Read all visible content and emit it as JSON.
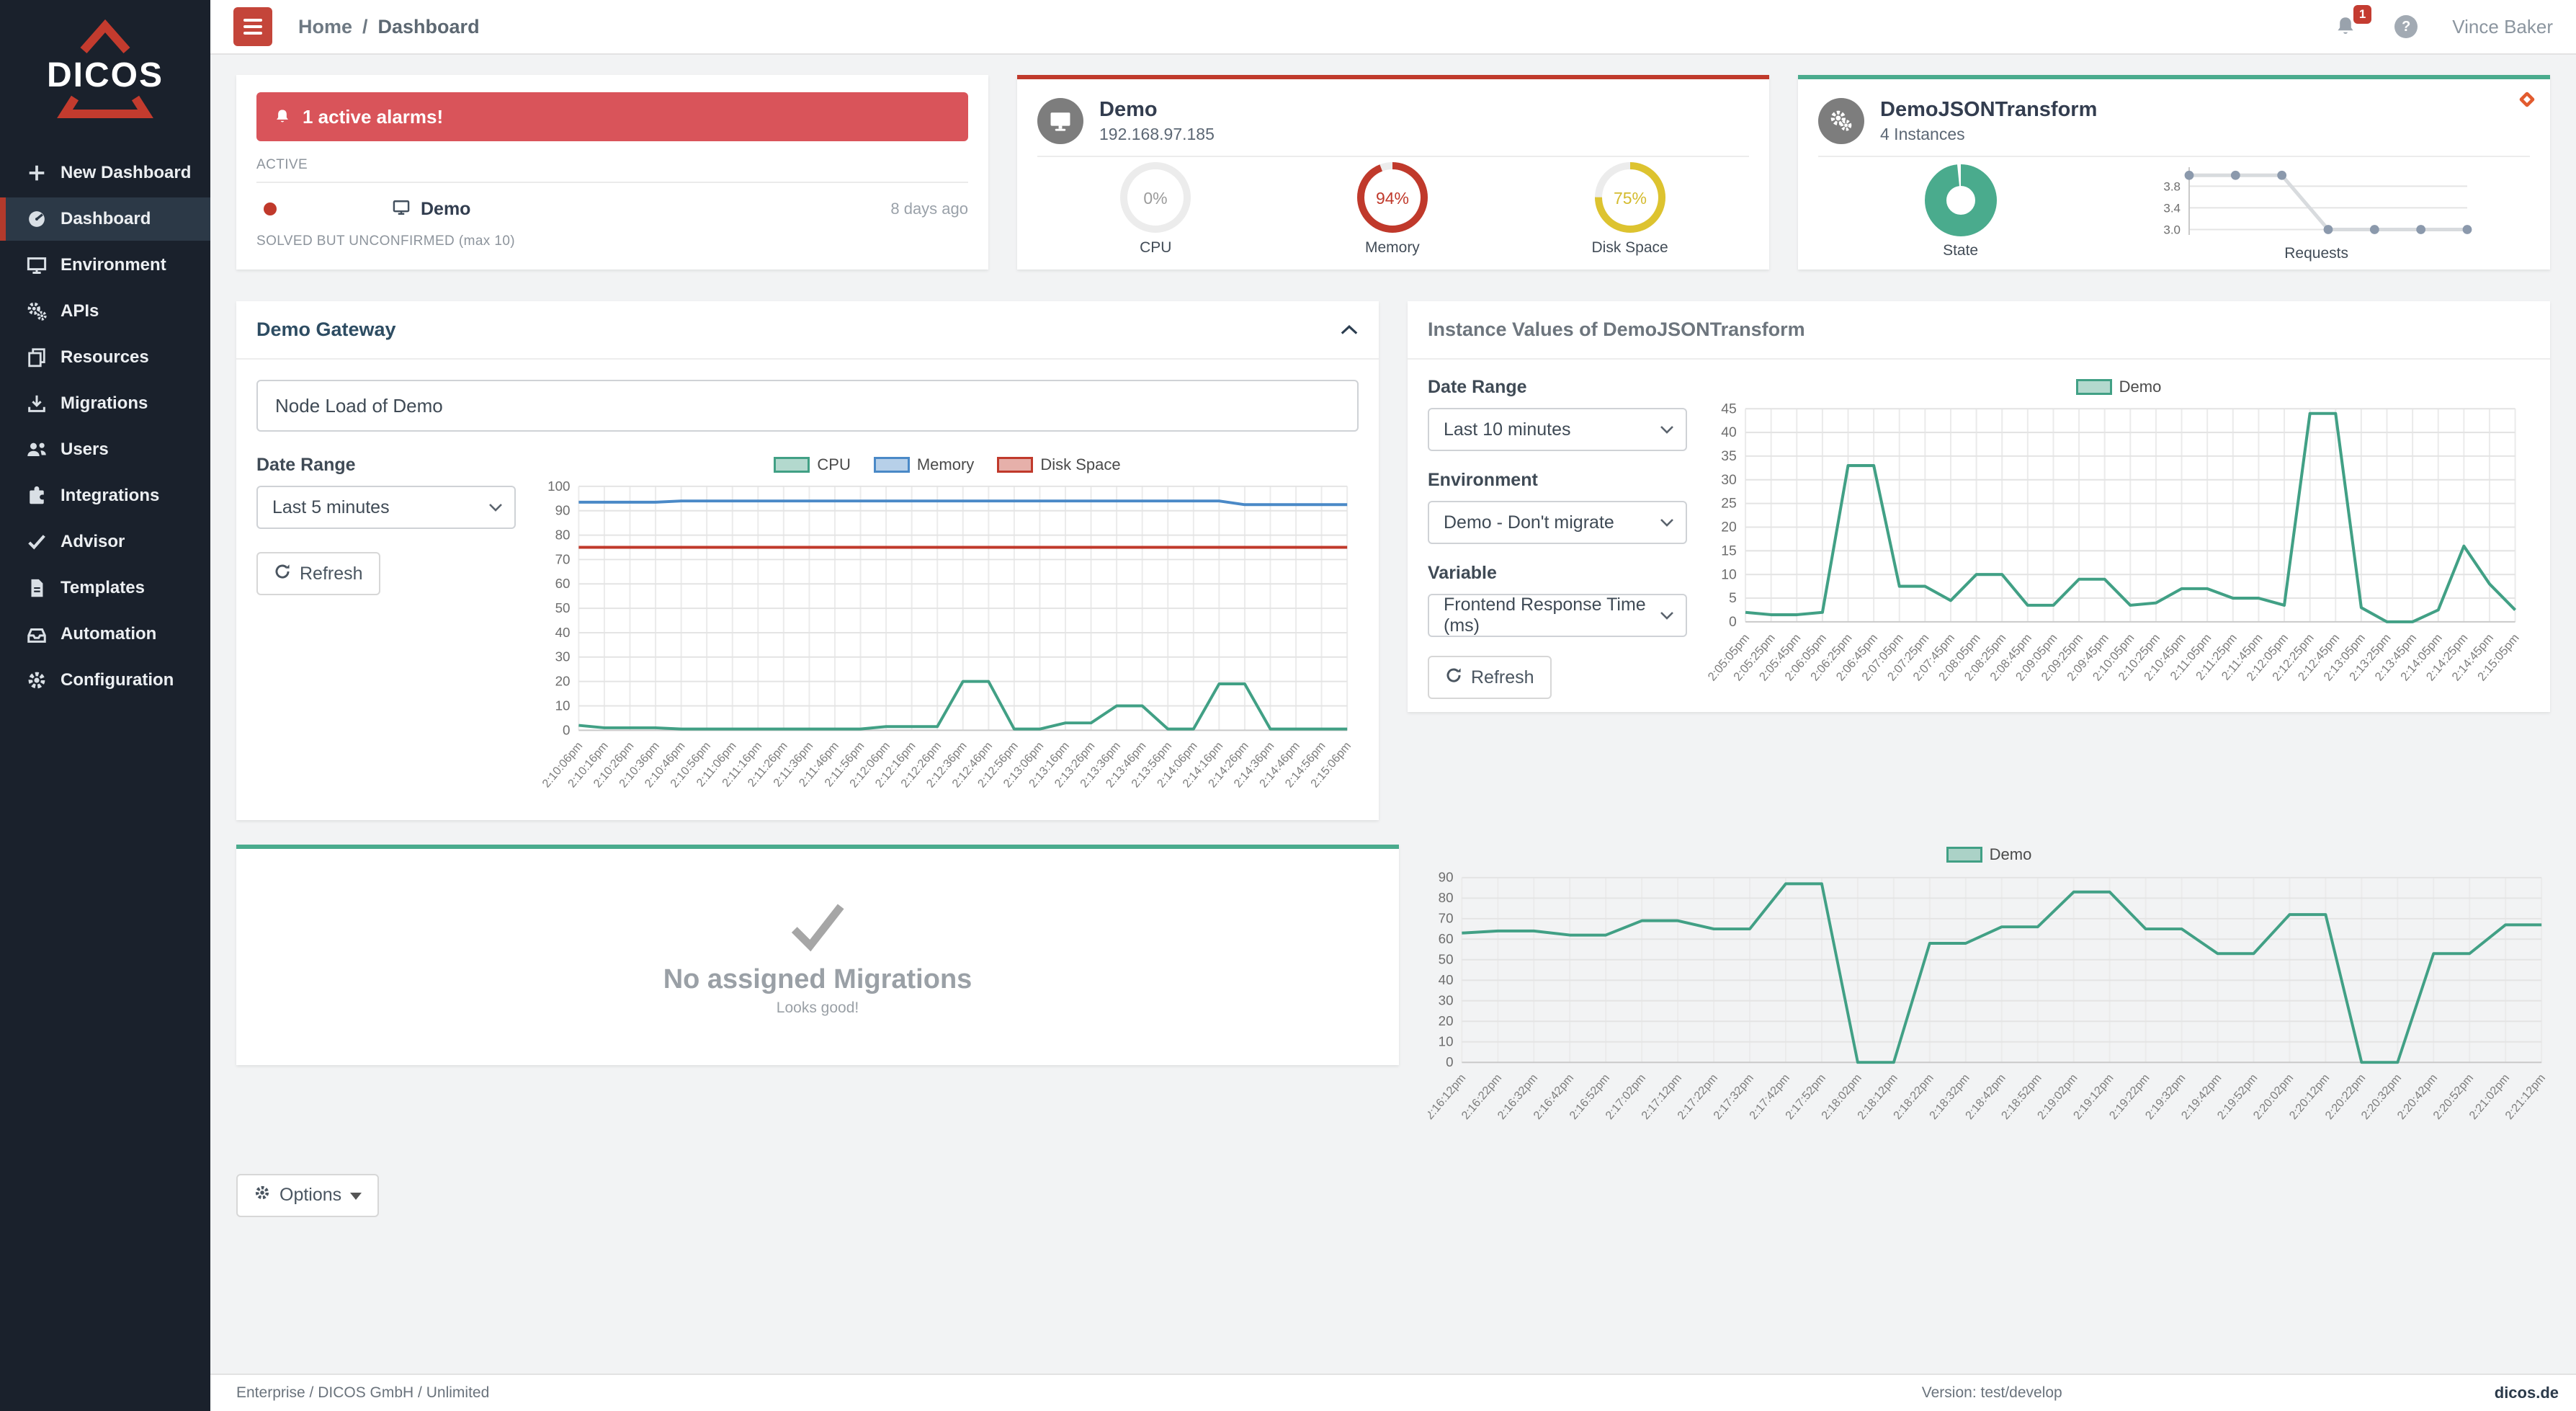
{
  "topbar": {
    "breadcrumb_home": "Home",
    "breadcrumb_sep": "/",
    "breadcrumb_current": "Dashboard",
    "notification_count": "1",
    "help_glyph": "?",
    "user_name": "Vince Baker"
  },
  "sidebar": {
    "logo_text": "DICOS",
    "items": [
      {
        "label": "New Dashboard",
        "icon": "plus-icon",
        "active": false
      },
      {
        "label": "Dashboard",
        "icon": "tachometer-icon",
        "active": true
      },
      {
        "label": "Environment",
        "icon": "desktop-icon",
        "active": false
      },
      {
        "label": "APIs",
        "icon": "gears-icon",
        "active": false
      },
      {
        "label": "Resources",
        "icon": "copy-icon",
        "active": false
      },
      {
        "label": "Migrations",
        "icon": "download-icon",
        "active": false
      },
      {
        "label": "Users",
        "icon": "users-icon",
        "active": false
      },
      {
        "label": "Integrations",
        "icon": "puzzle-icon",
        "active": false
      },
      {
        "label": "Advisor",
        "icon": "check-icon",
        "active": false
      },
      {
        "label": "Templates",
        "icon": "file-icon",
        "active": false
      },
      {
        "label": "Automation",
        "icon": "box-icon",
        "active": false
      },
      {
        "label": "Configuration",
        "icon": "gear-icon",
        "active": false
      }
    ]
  },
  "alarm_card": {
    "banner_text": "1 active alarms!",
    "active_header": "ACTIVE",
    "alarm_name": "Demo",
    "alarm_age": "8 days ago",
    "solved_header": "SOLVED BUT UNCONFIRMED (max 10)"
  },
  "demo_card": {
    "title": "Demo",
    "subtitle": "192.168.97.185",
    "gauges": [
      {
        "label": "CPU",
        "value": 0,
        "display": "0%",
        "color": "#b5b5b5",
        "text_color": "#9b9b9b"
      },
      {
        "label": "Memory",
        "value": 94,
        "display": "94%",
        "color": "#c0392b",
        "text_color": "#c0392b"
      },
      {
        "label": "Disk Space",
        "value": 75,
        "display": "75%",
        "color": "#ddc32f",
        "text_color": "#d4bb2e"
      }
    ]
  },
  "transform_card": {
    "title": "DemoJSONTransform",
    "subtitle": "4 Instances",
    "state_label": "State",
    "requests_label": "Requests",
    "state_color": "#4aab8d"
  },
  "gateway_panel": {
    "title": "Demo Gateway",
    "node_title_value": "Node Load of Demo",
    "date_range_label": "Date Range",
    "date_range_value": "Last 5 minutes",
    "refresh_label": "Refresh"
  },
  "instance_panel": {
    "title": "Instance Values of DemoJSONTransform",
    "date_range_label": "Date Range",
    "date_range_value": "Last 10 minutes",
    "environment_label": "Environment",
    "environment_value": "Demo - Don't migrate",
    "variable_label": "Variable",
    "variable_value": "Frontend Response Time (ms)",
    "refresh_label": "Refresh"
  },
  "migrations_panel": {
    "title": "No assigned Migrations",
    "subtitle": "Looks good!"
  },
  "options_button_label": "Options",
  "footer": {
    "license": "Enterprise / DICOS GmbH / Unlimited",
    "version": "Version: test/develop",
    "site": "dicos.de"
  },
  "colors": {
    "accent_red": "#c0392b",
    "banner_red": "#d9545a",
    "accent_green": "#4aab8d",
    "chart_green": "#41a085",
    "chart_blue": "#4a89c7",
    "chart_red": "#c0392b",
    "sidebar_bg": "#1a212c"
  },
  "chart_data": [
    {
      "id": "requests",
      "type": "line",
      "title": "Requests",
      "x": [
        1,
        2,
        3,
        4,
        5,
        6,
        7
      ],
      "series": [
        {
          "name": "Requests",
          "color": "#d8dbde",
          "dot_color": "#8b99ac",
          "values": [
            4,
            4,
            4,
            3,
            3,
            3,
            3
          ]
        }
      ],
      "ylim": [
        2.9,
        4.15
      ],
      "yticks": [
        3.0,
        3.4,
        3.8
      ],
      "grid": "horizontal",
      "legend_position": "none"
    },
    {
      "id": "node_load",
      "type": "line",
      "title": "Node Load of Demo",
      "categories": [
        "2:10:06pm",
        "2:10:16pm",
        "2:10:26pm",
        "2:10:36pm",
        "2:10:46pm",
        "2:10:56pm",
        "2:11:06pm",
        "2:11:16pm",
        "2:11:26pm",
        "2:11:36pm",
        "2:11:46pm",
        "2:11:56pm",
        "2:12:06pm",
        "2:12:16pm",
        "2:12:26pm",
        "2:12:36pm",
        "2:12:46pm",
        "2:12:56pm",
        "2:13:06pm",
        "2:13:16pm",
        "2:13:26pm",
        "2:13:36pm",
        "2:13:46pm",
        "2:13:56pm",
        "2:14:06pm",
        "2:14:16pm",
        "2:14:26pm",
        "2:14:36pm",
        "2:14:46pm",
        "2:14:56pm",
        "2:15:06pm"
      ],
      "series": [
        {
          "name": "CPU",
          "color": "#41a085",
          "values": [
            2,
            1,
            1,
            1,
            0.5,
            0.5,
            0.5,
            0.5,
            0.5,
            0.5,
            0.5,
            0.5,
            1.5,
            1.5,
            1.5,
            20,
            20,
            0.5,
            0.5,
            3,
            3,
            10,
            10,
            0.5,
            0.5,
            19,
            19,
            0.5,
            0.5,
            0.5,
            0.5
          ]
        },
        {
          "name": "Memory",
          "color": "#4a89c7",
          "values": [
            93.5,
            93.5,
            93.5,
            93.5,
            94,
            94,
            94,
            94,
            94,
            94,
            94,
            94,
            94,
            94,
            94,
            94,
            94,
            94,
            94,
            94,
            94,
            94,
            94,
            94,
            94,
            94,
            92.5,
            92.5,
            92.5,
            92.5,
            92.5
          ]
        },
        {
          "name": "Disk Space",
          "color": "#c0392b",
          "values": [
            75,
            75,
            75,
            75,
            75,
            75,
            75,
            75,
            75,
            75,
            75,
            75,
            75,
            75,
            75,
            75,
            75,
            75,
            75,
            75,
            75,
            75,
            75,
            75,
            75,
            75,
            75,
            75,
            75,
            75,
            75
          ]
        }
      ],
      "ylim": [
        0,
        100
      ],
      "ytick_step": 10,
      "grid": "both",
      "legend_position": "top"
    },
    {
      "id": "instance_values",
      "type": "line",
      "title": "Instance Values of DemoJSONTransform - Frontend Response Time (ms)",
      "categories": [
        "2:05:05pm",
        "2:05:25pm",
        "2:05:45pm",
        "2:06:05pm",
        "2:06:25pm",
        "2:06:45pm",
        "2:07:05pm",
        "2:07:25pm",
        "2:07:45pm",
        "2:08:05pm",
        "2:08:25pm",
        "2:08:45pm",
        "2:09:05pm",
        "2:09:25pm",
        "2:09:45pm",
        "2:10:05pm",
        "2:10:25pm",
        "2:10:45pm",
        "2:11:05pm",
        "2:11:25pm",
        "2:11:45pm",
        "2:12:05pm",
        "2:12:25pm",
        "2:12:45pm",
        "2:13:05pm",
        "2:13:25pm",
        "2:13:45pm",
        "2:14:05pm",
        "2:14:25pm",
        "2:14:45pm",
        "2:15:05pm"
      ],
      "series": [
        {
          "name": "Demo",
          "color": "#41a085",
          "values": [
            2,
            1.5,
            1.5,
            2,
            33,
            33,
            7.5,
            7.5,
            4.5,
            10,
            10,
            3.5,
            3.5,
            9,
            9,
            3.5,
            4,
            7,
            7,
            5,
            5,
            3.5,
            44,
            44,
            3,
            0,
            0,
            2.5,
            16,
            8,
            2.5
          ]
        }
      ],
      "ylim": [
        0,
        45
      ],
      "ytick_step": 5,
      "grid": "both",
      "legend_position": "top"
    },
    {
      "id": "usage",
      "type": "line",
      "title": "Demo usage",
      "categories": [
        "2:16:12pm",
        "2:16:22pm",
        "2:16:32pm",
        "2:16:42pm",
        "2:16:52pm",
        "2:17:02pm",
        "2:17:12pm",
        "2:17:22pm",
        "2:17:32pm",
        "2:17:42pm",
        "2:17:52pm",
        "2:18:02pm",
        "2:18:12pm",
        "2:18:22pm",
        "2:18:32pm",
        "2:18:42pm",
        "2:18:52pm",
        "2:19:02pm",
        "2:19:12pm",
        "2:19:22pm",
        "2:19:32pm",
        "2:19:42pm",
        "2:19:52pm",
        "2:20:02pm",
        "2:20:12pm",
        "2:20:22pm",
        "2:20:32pm",
        "2:20:42pm",
        "2:20:52pm",
        "2:21:02pm",
        "2:21:12pm"
      ],
      "series": [
        {
          "name": "Demo",
          "color": "#41a085",
          "values": [
            63,
            64,
            64,
            62,
            62,
            69,
            69,
            65,
            65,
            87,
            87,
            0,
            0,
            58,
            58,
            66,
            66,
            83,
            83,
            65,
            65,
            53,
            53,
            72,
            72,
            0,
            0,
            53,
            53,
            67,
            67
          ]
        }
      ],
      "ylim": [
        0,
        90
      ],
      "ytick_step": 10,
      "grid": "both",
      "legend_position": "top"
    }
  ]
}
